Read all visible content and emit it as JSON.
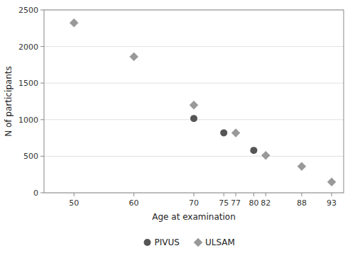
{
  "chart_data": {
    "type": "scatter",
    "x_label": "Age at examination",
    "y_label": "N of participants",
    "series": [
      {
        "name": "PIVUS",
        "color": "#555555",
        "marker": "circle",
        "x": [
          70,
          75,
          80
        ],
        "values": [
          1016,
          820,
          580
        ]
      },
      {
        "name": "ULSAM",
        "color": "#999999",
        "marker": "diamond",
        "x": [
          50,
          60,
          70,
          77,
          82,
          88,
          93
        ],
        "values": [
          2322,
          1860,
          1200,
          820,
          510,
          360,
          148
        ]
      }
    ],
    "xlim": [
      45,
      95
    ],
    "xticks": [
      50,
      60,
      70,
      75,
      77,
      80,
      82,
      88,
      93
    ],
    "ylim": [
      0,
      2500
    ],
    "yticks": [
      0,
      500,
      1000,
      1500,
      2000,
      2500
    ],
    "grid": "y",
    "legend": "bottom"
  }
}
